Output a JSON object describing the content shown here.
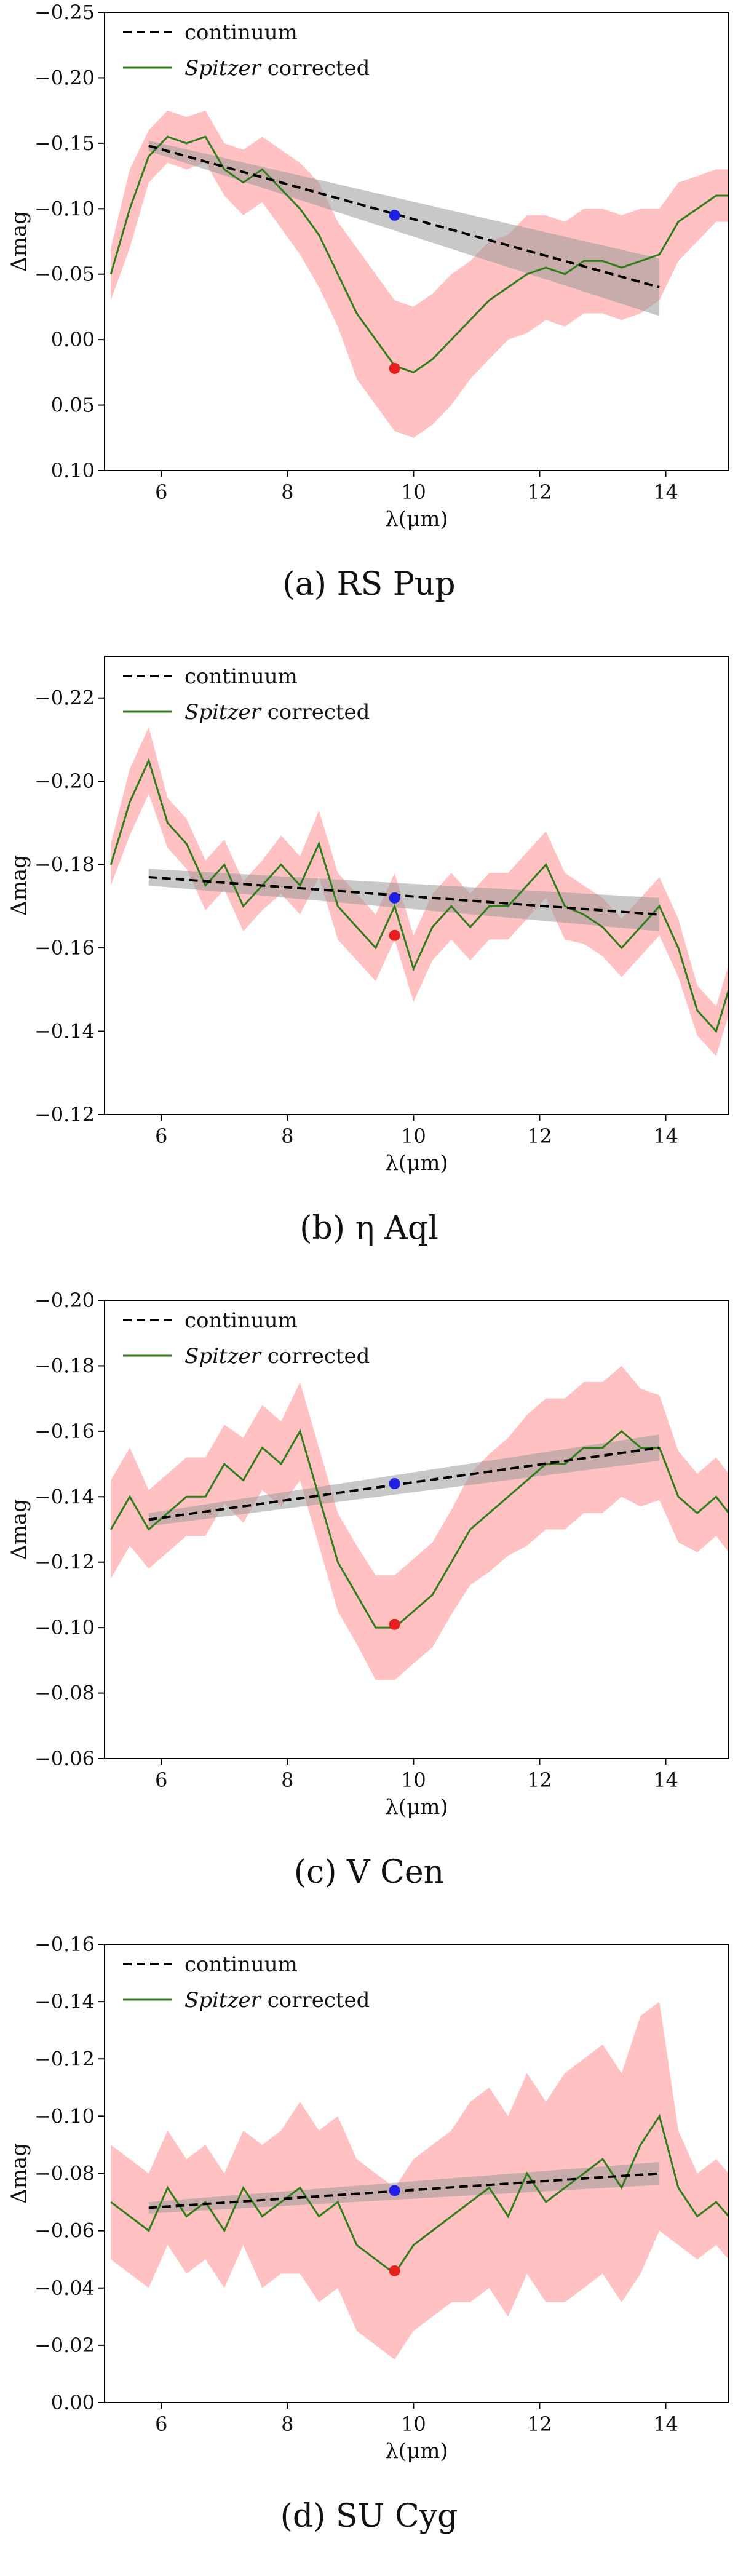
{
  "legend": {
    "continuum": "continuum",
    "spitzer_italic": "Spitzer",
    "spitzer_rest": " corrected"
  },
  "colors": {
    "continuum": "#000000",
    "spitzer": "#2e7d18",
    "band": "#ffb6b6",
    "continuum_band": "#9a9a9a",
    "blue_point": "#1f1fe6",
    "red_point": "#e61f1f"
  },
  "chart_data": [
    {
      "type": "line",
      "panel": "a",
      "caption": "(a) RS Pup",
      "xlabel": "λ(μm)",
      "ylabel": "Δmag",
      "xlim": [
        5.1,
        15.0
      ],
      "ylim": [
        0.1,
        -0.25
      ],
      "xticks": [
        "6",
        "8",
        "10",
        "12",
        "14"
      ],
      "yticks": [
        "−0.25",
        "−0.20",
        "−0.15",
        "−0.10",
        "−0.05",
        "0.00",
        "0.05",
        "0.10"
      ],
      "ytick_values": [
        -0.25,
        -0.2,
        -0.15,
        -0.1,
        -0.05,
        0.0,
        0.05,
        0.1
      ],
      "continuum": {
        "x": [
          5.8,
          13.9
        ],
        "y": [
          -0.148,
          -0.04
        ],
        "band_halfwidth_start": 0.004,
        "band_halfwidth_end": 0.022
      },
      "spitzer": {
        "x": [
          5.2,
          5.5,
          5.8,
          6.1,
          6.4,
          6.7,
          7.0,
          7.3,
          7.6,
          7.9,
          8.2,
          8.5,
          8.8,
          9.1,
          9.4,
          9.7,
          10.0,
          10.3,
          10.6,
          10.9,
          11.2,
          11.5,
          11.8,
          12.1,
          12.4,
          12.7,
          13.0,
          13.3,
          13.6,
          13.9,
          14.2,
          14.5,
          14.8,
          15.0
        ],
        "y": [
          -0.05,
          -0.1,
          -0.14,
          -0.155,
          -0.15,
          -0.155,
          -0.13,
          -0.12,
          -0.13,
          -0.115,
          -0.1,
          -0.08,
          -0.05,
          -0.02,
          0.0,
          0.02,
          0.025,
          0.015,
          0.0,
          -0.015,
          -0.03,
          -0.04,
          -0.05,
          -0.055,
          -0.05,
          -0.06,
          -0.06,
          -0.055,
          -0.06,
          -0.065,
          -0.09,
          -0.1,
          -0.11,
          -0.11
        ],
        "band": [
          0.02,
          0.03,
          0.02,
          0.02,
          0.02,
          0.02,
          0.02,
          0.025,
          0.025,
          0.03,
          0.035,
          0.04,
          0.04,
          0.05,
          0.05,
          0.05,
          0.05,
          0.05,
          0.05,
          0.045,
          0.045,
          0.04,
          0.045,
          0.04,
          0.04,
          0.04,
          0.04,
          0.04,
          0.04,
          0.035,
          0.03,
          0.025,
          0.02,
          0.02
        ]
      },
      "points": {
        "blue": [
          9.7,
          -0.095
        ],
        "red": [
          9.7,
          0.022
        ]
      }
    },
    {
      "type": "line",
      "panel": "b",
      "caption": "(b) η Aql",
      "xlabel": "λ(μm)",
      "ylabel": "Δmag",
      "xlim": [
        5.1,
        15.0
      ],
      "ylim": [
        -0.12,
        -0.23
      ],
      "xticks": [
        "6",
        "8",
        "10",
        "12",
        "14"
      ],
      "yticks": [
        "−0.22",
        "−0.20",
        "−0.18",
        "−0.16",
        "−0.14",
        "−0.12"
      ],
      "ytick_values": [
        -0.22,
        -0.2,
        -0.18,
        -0.16,
        -0.14,
        -0.12
      ],
      "continuum": {
        "x": [
          5.8,
          13.9
        ],
        "y": [
          -0.177,
          -0.168
        ],
        "band_halfwidth_start": 0.002,
        "band_halfwidth_end": 0.004
      },
      "spitzer": {
        "x": [
          5.2,
          5.5,
          5.8,
          6.1,
          6.4,
          6.7,
          7.0,
          7.3,
          7.6,
          7.9,
          8.2,
          8.5,
          8.8,
          9.1,
          9.4,
          9.7,
          10.0,
          10.3,
          10.6,
          10.9,
          11.2,
          11.5,
          11.8,
          12.1,
          12.4,
          12.7,
          13.0,
          13.3,
          13.6,
          13.9,
          14.2,
          14.5,
          14.8,
          15.0
        ],
        "y": [
          -0.18,
          -0.195,
          -0.205,
          -0.19,
          -0.185,
          -0.175,
          -0.18,
          -0.17,
          -0.175,
          -0.18,
          -0.175,
          -0.185,
          -0.17,
          -0.165,
          -0.16,
          -0.17,
          -0.155,
          -0.165,
          -0.17,
          -0.165,
          -0.17,
          -0.17,
          -0.175,
          -0.18,
          -0.17,
          -0.168,
          -0.165,
          -0.16,
          -0.165,
          -0.17,
          -0.16,
          -0.145,
          -0.14,
          -0.15
        ],
        "band": [
          0.005,
          0.008,
          0.008,
          0.006,
          0.006,
          0.006,
          0.006,
          0.006,
          0.006,
          0.007,
          0.007,
          0.008,
          0.008,
          0.008,
          0.008,
          0.008,
          0.008,
          0.008,
          0.008,
          0.008,
          0.008,
          0.008,
          0.008,
          0.008,
          0.008,
          0.007,
          0.007,
          0.007,
          0.007,
          0.007,
          0.007,
          0.006,
          0.006,
          0.006
        ]
      },
      "points": {
        "blue": [
          9.7,
          -0.172
        ],
        "red": [
          9.7,
          -0.163
        ]
      }
    },
    {
      "type": "line",
      "panel": "c",
      "caption": "(c) V Cen",
      "xlabel": "λ(μm)",
      "ylabel": "Δmag",
      "xlim": [
        5.1,
        15.0
      ],
      "ylim": [
        -0.06,
        -0.2
      ],
      "xticks": [
        "6",
        "8",
        "10",
        "12",
        "14"
      ],
      "yticks": [
        "−0.20",
        "−0.18",
        "−0.16",
        "−0.14",
        "−0.12",
        "−0.10",
        "−0.08",
        "−0.06"
      ],
      "ytick_values": [
        -0.2,
        -0.18,
        -0.16,
        -0.14,
        -0.12,
        -0.1,
        -0.08,
        -0.06
      ],
      "continuum": {
        "x": [
          5.8,
          13.9
        ],
        "y": [
          -0.133,
          -0.155
        ],
        "band_halfwidth_start": 0.002,
        "band_halfwidth_end": 0.004
      },
      "spitzer": {
        "x": [
          5.2,
          5.5,
          5.8,
          6.1,
          6.4,
          6.7,
          7.0,
          7.3,
          7.6,
          7.9,
          8.2,
          8.5,
          8.8,
          9.1,
          9.4,
          9.7,
          10.0,
          10.3,
          10.6,
          10.9,
          11.2,
          11.5,
          11.8,
          12.1,
          12.4,
          12.7,
          13.0,
          13.3,
          13.6,
          13.9,
          14.2,
          14.5,
          14.8,
          15.0
        ],
        "y": [
          -0.13,
          -0.14,
          -0.13,
          -0.135,
          -0.14,
          -0.14,
          -0.15,
          -0.145,
          -0.155,
          -0.15,
          -0.16,
          -0.14,
          -0.12,
          -0.11,
          -0.1,
          -0.1,
          -0.105,
          -0.11,
          -0.12,
          -0.13,
          -0.135,
          -0.14,
          -0.145,
          -0.15,
          -0.15,
          -0.155,
          -0.155,
          -0.16,
          -0.155,
          -0.155,
          -0.14,
          -0.135,
          -0.14,
          -0.135
        ],
        "band": [
          0.015,
          0.015,
          0.012,
          0.012,
          0.012,
          0.012,
          0.012,
          0.013,
          0.013,
          0.013,
          0.015,
          0.015,
          0.015,
          0.015,
          0.016,
          0.016,
          0.016,
          0.016,
          0.016,
          0.017,
          0.018,
          0.018,
          0.02,
          0.02,
          0.02,
          0.02,
          0.02,
          0.02,
          0.018,
          0.016,
          0.014,
          0.012,
          0.012,
          0.012
        ]
      },
      "points": {
        "blue": [
          9.7,
          -0.144
        ],
        "red": [
          9.7,
          -0.101
        ]
      }
    },
    {
      "type": "line",
      "panel": "d",
      "caption": "(d) SU Cyg",
      "xlabel": "λ(μm)",
      "ylabel": "Δmag",
      "xlim": [
        5.1,
        15.0
      ],
      "ylim": [
        0.0,
        -0.16
      ],
      "xticks": [
        "6",
        "8",
        "10",
        "12",
        "14"
      ],
      "yticks": [
        "−0.16",
        "−0.14",
        "−0.12",
        "−0.10",
        "−0.08",
        "−0.06",
        "−0.04",
        "−0.02",
        "0.00"
      ],
      "ytick_values": [
        -0.16,
        -0.14,
        -0.12,
        -0.1,
        -0.08,
        -0.06,
        -0.04,
        -0.02,
        0.0
      ],
      "continuum": {
        "x": [
          5.8,
          13.9
        ],
        "y": [
          -0.068,
          -0.08
        ],
        "band_halfwidth_start": 0.002,
        "band_halfwidth_end": 0.004
      },
      "spitzer": {
        "x": [
          5.2,
          5.5,
          5.8,
          6.1,
          6.4,
          6.7,
          7.0,
          7.3,
          7.6,
          7.9,
          8.2,
          8.5,
          8.8,
          9.1,
          9.4,
          9.7,
          10.0,
          10.3,
          10.6,
          10.9,
          11.2,
          11.5,
          11.8,
          12.1,
          12.4,
          12.7,
          13.0,
          13.3,
          13.6,
          13.9,
          14.2,
          14.5,
          14.8,
          15.0
        ],
        "y": [
          -0.07,
          -0.065,
          -0.06,
          -0.075,
          -0.065,
          -0.07,
          -0.06,
          -0.075,
          -0.065,
          -0.07,
          -0.075,
          -0.065,
          -0.07,
          -0.055,
          -0.05,
          -0.045,
          -0.055,
          -0.06,
          -0.065,
          -0.07,
          -0.075,
          -0.065,
          -0.08,
          -0.07,
          -0.075,
          -0.08,
          -0.085,
          -0.075,
          -0.09,
          -0.1,
          -0.075,
          -0.065,
          -0.07,
          -0.065
        ],
        "band": [
          0.02,
          0.02,
          0.02,
          0.02,
          0.02,
          0.02,
          0.02,
          0.02,
          0.025,
          0.025,
          0.03,
          0.03,
          0.03,
          0.03,
          0.03,
          0.03,
          0.03,
          0.03,
          0.03,
          0.035,
          0.035,
          0.035,
          0.035,
          0.035,
          0.04,
          0.04,
          0.04,
          0.04,
          0.045,
          0.04,
          0.02,
          0.015,
          0.015,
          0.015
        ]
      },
      "points": {
        "blue": [
          9.7,
          -0.074
        ],
        "red": [
          9.7,
          -0.046
        ]
      }
    }
  ]
}
